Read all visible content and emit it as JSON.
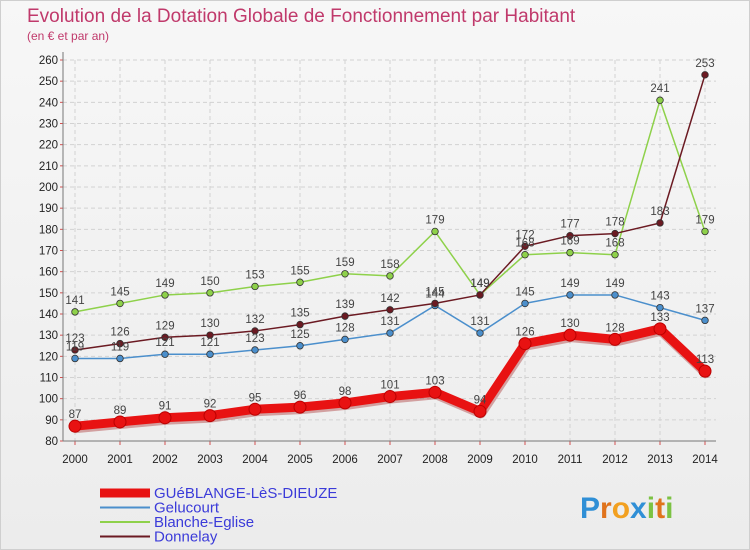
{
  "chart_data": {
    "type": "line",
    "title": "Evolution de la Dotation Globale de Fonctionnement par Habitant",
    "subtitle": "(en € et par an)",
    "xlabel": "",
    "ylabel": "",
    "ylim": [
      80,
      260
    ],
    "ytick_step": 10,
    "x": [
      2000,
      2001,
      2002,
      2003,
      2004,
      2005,
      2006,
      2007,
      2008,
      2009,
      2010,
      2011,
      2012,
      2013,
      2014
    ],
    "series": [
      {
        "name": "GUéBLANGE-LèS-DIEUZE",
        "color": "#e81212",
        "values": [
          87,
          89,
          91,
          92,
          95,
          96,
          98,
          101,
          103,
          94,
          126,
          130,
          128,
          133,
          113
        ]
      },
      {
        "name": "Gelucourt",
        "color": "#4b8fcc",
        "values": [
          119,
          119,
          121,
          121,
          123,
          125,
          128,
          131,
          144,
          131,
          145,
          149,
          149,
          143,
          137
        ]
      },
      {
        "name": "Blanche-Eglise",
        "color": "#8ed14a",
        "values": [
          141,
          145,
          149,
          150,
          153,
          155,
          159,
          158,
          179,
          149,
          168,
          169,
          168,
          241,
          179
        ]
      },
      {
        "name": "Donnelay",
        "color": "#6b1a22",
        "values": [
          123,
          126,
          129,
          130,
          132,
          135,
          139,
          142,
          145,
          149,
          172,
          177,
          178,
          183,
          253
        ]
      }
    ],
    "legend_position": "bottom-left",
    "grid": true
  },
  "branding": {
    "logo_text": "Proxiti",
    "letters": [
      {
        "ch": "P",
        "color": "#2f8fd6"
      },
      {
        "ch": "r",
        "color": "#e0731c"
      },
      {
        "ch": "o",
        "color": "#f2a020"
      },
      {
        "ch": "x",
        "color": "#2f8fd6"
      },
      {
        "ch": "i",
        "color": "#7cc243"
      },
      {
        "ch": "t",
        "color": "#e0731c"
      },
      {
        "ch": "i",
        "color": "#7cc243"
      }
    ]
  }
}
